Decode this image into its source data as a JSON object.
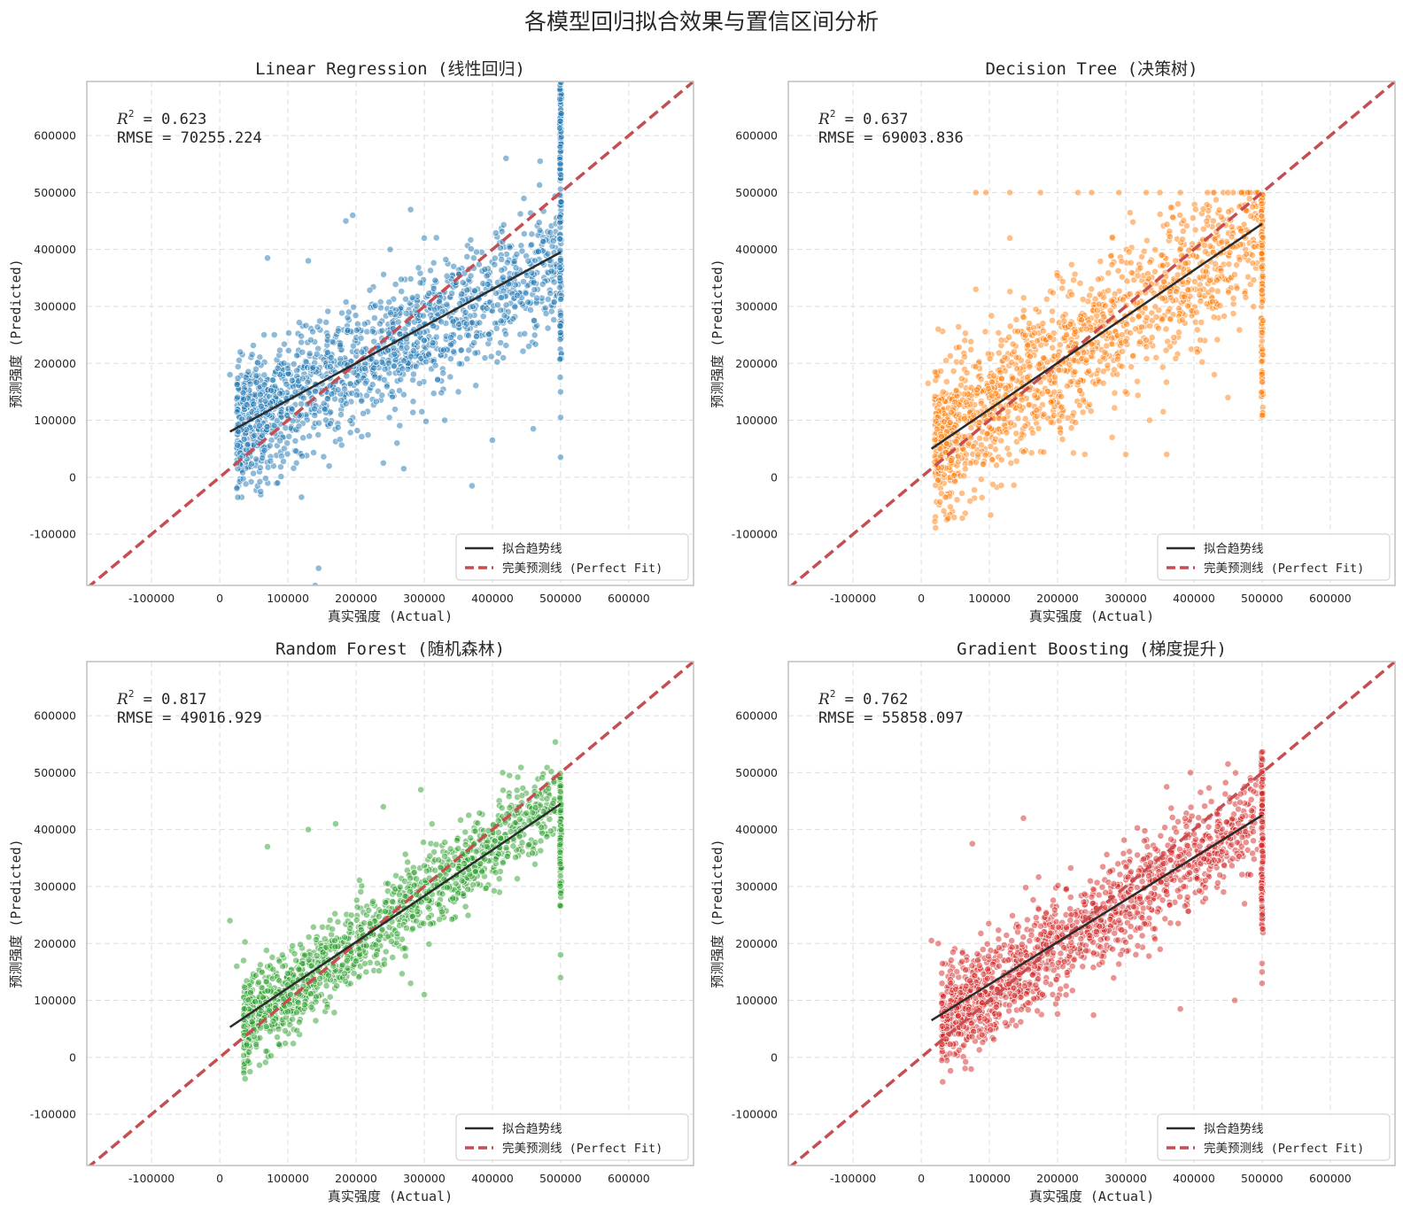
{
  "figure_title": "各模型回归拟合效果与置信区间分析",
  "colors": {
    "trend": "#2b2b2b",
    "perfect": "#c44e52",
    "grid": "#dddddd",
    "frame": "#bfbfbf",
    "text": "#262626"
  },
  "chart_data": [
    {
      "type": "scatter",
      "title": "Linear Regression (线性回归)",
      "xlabel": "真实强度 (Actual)",
      "ylabel": "预测强度 (Predicted)",
      "xlim": [
        -195000,
        695000
      ],
      "ylim": [
        -190000,
        695000
      ],
      "xticks": [
        -100000,
        0,
        100000,
        200000,
        300000,
        400000,
        500000,
        600000
      ],
      "yticks": [
        -100000,
        0,
        100000,
        200000,
        300000,
        400000,
        500000,
        600000
      ],
      "grid": true,
      "point_color": "#1f77b4",
      "r2_value": "0.623",
      "rmse_text": "RMSE = 70255.224",
      "trend_line": [
        [
          15000,
          80000
        ],
        [
          500000,
          395000
        ]
      ],
      "perfect_line": [
        [
          -195000,
          -195000
        ],
        [
          695000,
          695000
        ]
      ],
      "legend": [
        "拟合趋势线",
        "完美预测线 (Perfect Fit)"
      ],
      "legend_position": "lower right",
      "points": [
        [
          60000,
          -25000
        ],
        [
          85000,
          -10000
        ],
        [
          120000,
          -35000
        ],
        [
          145000,
          -160000
        ],
        [
          140000,
          -190000
        ],
        [
          370000,
          -15000
        ],
        [
          400000,
          65000
        ],
        [
          270000,
          15000
        ],
        [
          240000,
          25000
        ],
        [
          500000,
          35000
        ],
        [
          500000,
          150000
        ],
        [
          500000,
          105000
        ],
        [
          70000,
          385000
        ],
        [
          130000,
          380000
        ],
        [
          185000,
          450000
        ],
        [
          195000,
          460000
        ],
        [
          280000,
          470000
        ],
        [
          420000,
          560000
        ],
        [
          470000,
          555000
        ],
        [
          300000,
          420000
        ],
        [
          250000,
          400000
        ],
        [
          460000,
          85000
        ],
        [
          30000,
          220000
        ],
        [
          15000,
          180000
        ],
        [
          65000,
          250000
        ],
        [
          80000,
          250000
        ],
        [
          350000,
          150000
        ],
        [
          330000,
          100000
        ],
        [
          260000,
          60000
        ]
      ],
      "cloud": {
        "x": [
          25000,
          495000
        ],
        "slope": 0.62,
        "intercept": 70000,
        "spread": 55000,
        "n": 1500,
        "vertical_x": 500000,
        "vertical_range": [
          170000,
          695000
        ],
        "vertical_n": 170,
        "cap": null
      }
    },
    {
      "type": "scatter",
      "title": "Decision Tree (决策树)",
      "xlabel": "真实强度 (Actual)",
      "ylabel": "预测强度 (Predicted)",
      "xlim": [
        -195000,
        695000
      ],
      "ylim": [
        -190000,
        695000
      ],
      "xticks": [
        -100000,
        0,
        100000,
        200000,
        300000,
        400000,
        500000,
        600000
      ],
      "yticks": [
        -100000,
        0,
        100000,
        200000,
        300000,
        400000,
        500000,
        600000
      ],
      "grid": true,
      "point_color": "#ff7f0e",
      "r2_value": "0.637",
      "rmse_text": "RMSE = 69003.836",
      "trend_line": [
        [
          15000,
          50000
        ],
        [
          500000,
          445000
        ]
      ],
      "perfect_line": [
        [
          -195000,
          -195000
        ],
        [
          695000,
          695000
        ]
      ],
      "legend": [
        "拟合趋势线",
        "完美预测线 (Perfect Fit)"
      ],
      "legend_position": "lower right",
      "points": [
        [
          80000,
          500000
        ],
        [
          95000,
          500000
        ],
        [
          130000,
          500000
        ],
        [
          175000,
          500000
        ],
        [
          230000,
          500000
        ],
        [
          250000,
          500000
        ],
        [
          290000,
          500000
        ],
        [
          330000,
          500000
        ],
        [
          350000,
          500000
        ],
        [
          380000,
          500000
        ],
        [
          420000,
          500000
        ],
        [
          450000,
          500000
        ],
        [
          470000,
          500000
        ],
        [
          10000,
          165000
        ],
        [
          25000,
          260000
        ],
        [
          80000,
          330000
        ],
        [
          130000,
          420000
        ],
        [
          240000,
          40000
        ],
        [
          300000,
          40000
        ],
        [
          360000,
          40000
        ],
        [
          280000,
          70000
        ],
        [
          335000,
          100000
        ],
        [
          355000,
          115000
        ],
        [
          450000,
          140000
        ],
        [
          430000,
          180000
        ],
        [
          405000,
          220000
        ]
      ],
      "cloud": {
        "x": [
          20000,
          495000
        ],
        "slope": 0.8,
        "intercept": 40000,
        "spread": 65000,
        "n": 1500,
        "vertical_x": 500000,
        "vertical_range": [
          95000,
          500000
        ],
        "vertical_n": 140,
        "cap": 500000
      }
    },
    {
      "type": "scatter",
      "title": "Random Forest (随机森林)",
      "xlabel": "真实强度 (Actual)",
      "ylabel": "预测强度 (Predicted)",
      "xlim": [
        -195000,
        695000
      ],
      "ylim": [
        -190000,
        695000
      ],
      "xticks": [
        -100000,
        0,
        100000,
        200000,
        300000,
        400000,
        500000,
        600000
      ],
      "yticks": [
        -100000,
        0,
        100000,
        200000,
        300000,
        400000,
        500000,
        600000
      ],
      "grid": true,
      "point_color": "#2ca02c",
      "r2_value": "0.817",
      "rmse_text": "RMSE = 49016.929",
      "trend_line": [
        [
          15000,
          53000
        ],
        [
          500000,
          445000
        ]
      ],
      "perfect_line": [
        [
          -195000,
          -195000
        ],
        [
          695000,
          695000
        ]
      ],
      "legend": [
        "拟合趋势线",
        "完美预测线 (Perfect Fit)"
      ],
      "legend_position": "lower right",
      "points": [
        [
          15000,
          240000
        ],
        [
          70000,
          370000
        ],
        [
          130000,
          400000
        ],
        [
          170000,
          410000
        ],
        [
          240000,
          440000
        ],
        [
          295000,
          470000
        ],
        [
          415000,
          500000
        ],
        [
          425000,
          495000
        ],
        [
          300000,
          110000
        ],
        [
          280000,
          130000
        ],
        [
          500000,
          140000
        ],
        [
          500000,
          180000
        ],
        [
          35000,
          170000
        ],
        [
          25000,
          160000
        ]
      ],
      "cloud": {
        "x": [
          35000,
          495000
        ],
        "slope": 0.85,
        "intercept": 30000,
        "spread": 38000,
        "n": 1400,
        "vertical_x": 500000,
        "vertical_range": [
          265000,
          500000
        ],
        "vertical_n": 110,
        "cap": null
      }
    },
    {
      "type": "scatter",
      "title": "Gradient Boosting (梯度提升)",
      "xlabel": "真实强度 (Actual)",
      "ylabel": "预测强度 (Predicted)",
      "xlim": [
        -195000,
        695000
      ],
      "ylim": [
        -190000,
        695000
      ],
      "xticks": [
        -100000,
        0,
        100000,
        200000,
        300000,
        400000,
        500000,
        600000
      ],
      "yticks": [
        -100000,
        0,
        100000,
        200000,
        300000,
        400000,
        500000,
        600000
      ],
      "grid": true,
      "point_color": "#d62728",
      "r2_value": "0.762",
      "rmse_text": "RMSE = 55858.097",
      "trend_line": [
        [
          15000,
          65000
        ],
        [
          500000,
          425000
        ]
      ],
      "perfect_line": [
        [
          -195000,
          -195000
        ],
        [
          695000,
          695000
        ]
      ],
      "legend": [
        "拟合趋势线",
        "完美预测线 (Perfect Fit)"
      ],
      "legend_position": "lower right",
      "points": [
        [
          15000,
          205000
        ],
        [
          25000,
          200000
        ],
        [
          75000,
          375000
        ],
        [
          150000,
          420000
        ],
        [
          360000,
          475000
        ],
        [
          395000,
          500000
        ],
        [
          450000,
          515000
        ],
        [
          460000,
          100000
        ],
        [
          380000,
          85000
        ],
        [
          500000,
          130000
        ],
        [
          500000,
          150000
        ],
        [
          500000,
          165000
        ],
        [
          30000,
          95000
        ]
      ],
      "cloud": {
        "x": [
          30000,
          495000
        ],
        "slope": 0.78,
        "intercept": 40000,
        "spread": 45000,
        "n": 1450,
        "vertical_x": 500000,
        "vertical_range": [
          215000,
          540000
        ],
        "vertical_n": 140,
        "cap": null
      }
    }
  ]
}
